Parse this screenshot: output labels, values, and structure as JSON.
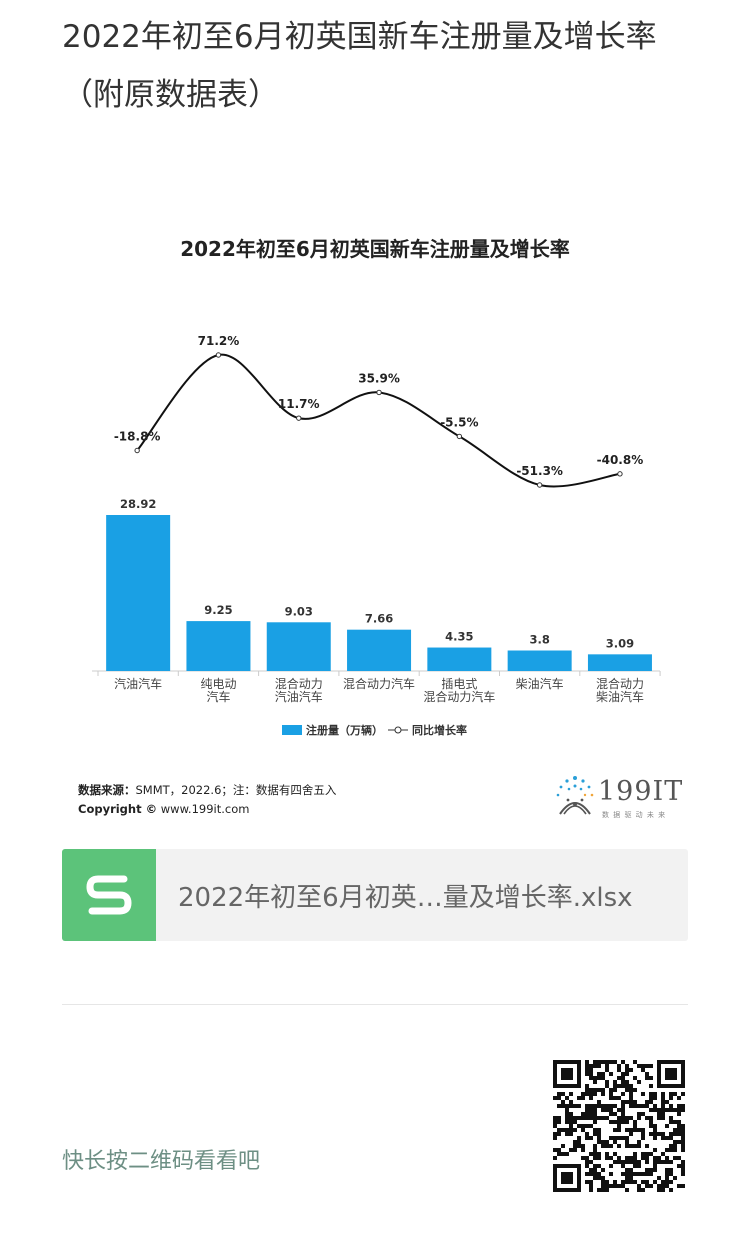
{
  "article": {
    "title": "2022年初至6月初英国新车注册量及增长率（附原数据表）"
  },
  "chart": {
    "source_label": "数据来源：",
    "source_text": "SMMT，2022.6；注：数据有四舍五入",
    "copyright_label": "Copyright ©",
    "copyright_text": " www.199it.com",
    "brand": "199IT",
    "brand_tagline": "数 据 驱 动 未 来"
  },
  "chart_data": {
    "type": "bar",
    "title": "2022年初至6月初英国新车注册量及增长率",
    "categories": [
      [
        "汽油汽车"
      ],
      [
        "纯电动",
        "汽车"
      ],
      [
        "混合动力",
        "汽油汽车"
      ],
      [
        "混合动力汽车"
      ],
      [
        "插电式",
        "混合动力汽车"
      ],
      [
        "柴油汽车"
      ],
      [
        "混合动力",
        "柴油汽车"
      ]
    ],
    "series": [
      {
        "name": "注册量（万辆）",
        "type": "bar",
        "values": [
          28.92,
          9.25,
          9.03,
          7.66,
          4.35,
          3.8,
          3.09
        ],
        "color": "#1aa0e4"
      },
      {
        "name": "同比增长率",
        "type": "line",
        "values": [
          -18.8,
          71.2,
          11.7,
          35.9,
          -5.5,
          -51.3,
          -40.8
        ],
        "labels": [
          "-18.8%",
          "71.2%",
          "11.7%",
          "35.9%",
          "-5.5%",
          "-51.3%",
          "-40.8%"
        ],
        "color": "#111111"
      }
    ],
    "bar_labels": [
      "28.92",
      "9.25",
      "9.03",
      "7.66",
      "4.35",
      "3.8",
      "3.09"
    ],
    "legend": "bottom-center"
  },
  "attachment": {
    "file_name": "2022年初至6月初英…量及增长率.xlsx",
    "icon": "spreadsheet-s-icon"
  },
  "footer": {
    "qr_hint": "快长按二维码看看吧"
  },
  "colors": {
    "bar": "#1aa0e4",
    "file_icon_bg": "#5cc37a",
    "hint_text": "#6d8f84"
  }
}
